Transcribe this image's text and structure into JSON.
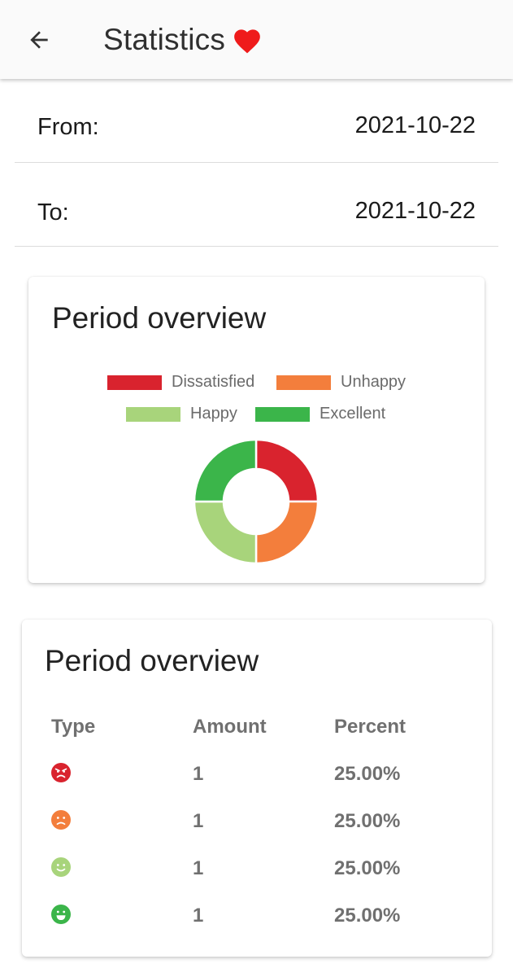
{
  "header": {
    "title": "Statistics",
    "back_icon": "arrow-left-icon",
    "heart_icon": "heart-icon",
    "heart_color": "#ef1b1b"
  },
  "range": {
    "from_label": "From:",
    "from_value": "2021-10-22",
    "to_label": "To:",
    "to_value": "2021-10-22"
  },
  "chart_card": {
    "title": "Period overview"
  },
  "chart_data": {
    "type": "pie",
    "variant": "doughnut",
    "categories": [
      "Dissatisfied",
      "Unhappy",
      "Happy",
      "Excellent"
    ],
    "values": [
      1,
      1,
      1,
      1
    ],
    "colors": [
      "#d9232e",
      "#f37e3c",
      "#a8d47b",
      "#3bb54a"
    ],
    "legend": "top"
  },
  "table_card": {
    "title": "Period overview",
    "columns": [
      "Type",
      "Amount",
      "Percent"
    ],
    "rows": [
      {
        "type_icon": "angry-face-icon",
        "color": "#d9232e",
        "amount": "1",
        "percent": "25.00%"
      },
      {
        "type_icon": "frown-face-icon",
        "color": "#f37e3c",
        "amount": "1",
        "percent": "25.00%"
      },
      {
        "type_icon": "smile-face-icon",
        "color": "#a8d47b",
        "amount": "1",
        "percent": "25.00%"
      },
      {
        "type_icon": "grin-face-icon",
        "color": "#3bb54a",
        "amount": "1",
        "percent": "25.00%"
      }
    ]
  }
}
